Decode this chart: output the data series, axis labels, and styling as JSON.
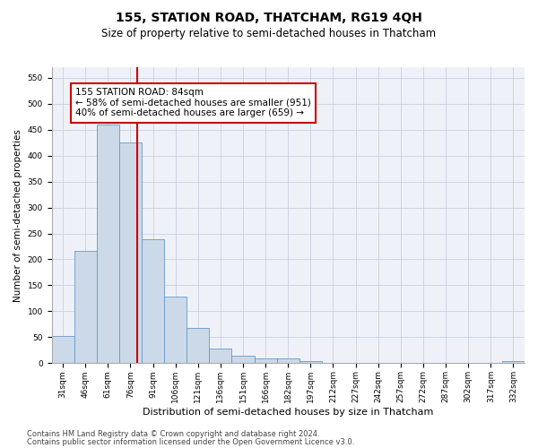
{
  "title": "155, STATION ROAD, THATCHAM, RG19 4QH",
  "subtitle": "Size of property relative to semi-detached houses in Thatcham",
  "xlabel": "Distribution of semi-detached houses by size in Thatcham",
  "ylabel": "Number of semi-detached properties",
  "categories": [
    "31sqm",
    "46sqm",
    "61sqm",
    "76sqm",
    "91sqm",
    "106sqm",
    "121sqm",
    "136sqm",
    "151sqm",
    "166sqm",
    "182sqm",
    "197sqm",
    "212sqm",
    "227sqm",
    "242sqm",
    "257sqm",
    "272sqm",
    "287sqm",
    "302sqm",
    "317sqm",
    "332sqm"
  ],
  "values": [
    52,
    217,
    460,
    425,
    238,
    128,
    68,
    28,
    15,
    10,
    10,
    5,
    0,
    0,
    0,
    0,
    0,
    0,
    0,
    0,
    5
  ],
  "bar_color": "#ccd9e8",
  "bar_edge_color": "#6699cc",
  "vline_color": "#cc0000",
  "vline_pos": 3.3,
  "annotation_text": "155 STATION ROAD: 84sqm\n← 58% of semi-detached houses are smaller (951)\n40% of semi-detached houses are larger (659) →",
  "annotation_box_color": "#ffffff",
  "annotation_box_edge": "#cc0000",
  "ylim": [
    0,
    570
  ],
  "yticks": [
    0,
    50,
    100,
    150,
    200,
    250,
    300,
    350,
    400,
    450,
    500,
    550
  ],
  "grid_color": "#c8d0de",
  "footer_line1": "Contains HM Land Registry data © Crown copyright and database right 2024.",
  "footer_line2": "Contains public sector information licensed under the Open Government Licence v3.0.",
  "bg_color": "#eef2f8",
  "title_fontsize": 10,
  "subtitle_fontsize": 8.5,
  "xlabel_fontsize": 8,
  "ylabel_fontsize": 7.5,
  "tick_fontsize": 6.5,
  "annotation_fontsize": 7.5,
  "footer_fontsize": 6
}
